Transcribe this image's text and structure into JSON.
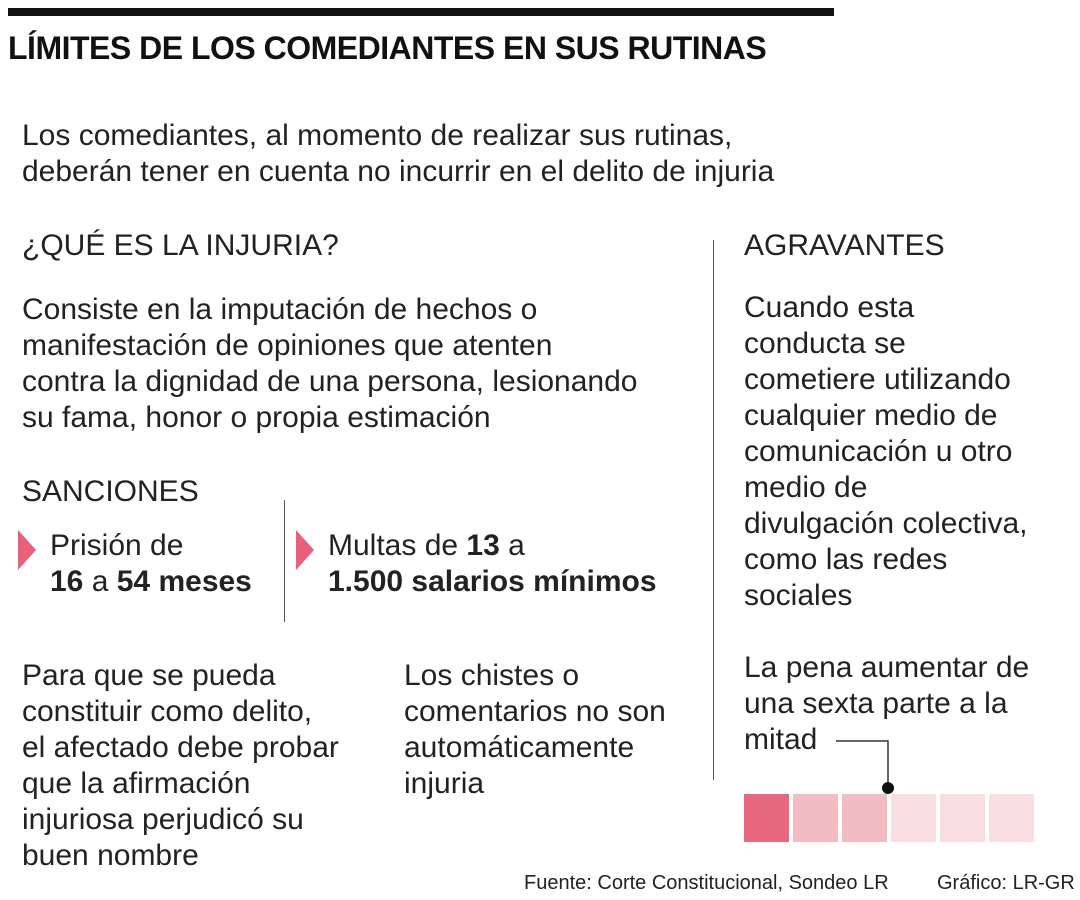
{
  "title": "LÍMITES DE LOS COMEDIANTES EN SUS RUTINAS",
  "intro": {
    "line1": "Los comediantes, al momento de realizar sus rutinas,",
    "line2": "deberán tener en cuenta no incurrir en el delito de injuria"
  },
  "what_is": {
    "heading": "¿QUÉ ES LA INJURIA?",
    "lines": [
      "Consiste en la imputación de hechos o",
      "manifestación de opiniones que atenten",
      "contra la dignidad de una persona, lesionando",
      "su fama, honor o propia estimación"
    ]
  },
  "sanctions": {
    "heading": "SANCIONES",
    "prison": {
      "prefix": "Prisión de",
      "from": "16",
      "connector": "a",
      "to": "54 meses"
    },
    "fines": {
      "prefix": "Multas de",
      "from": "13",
      "connector": "a",
      "to": "1.500 salarios mínimos"
    }
  },
  "proof": {
    "lines": [
      "Para que se pueda",
      "constituir como delito,",
      "el afectado debe probar",
      "que la afirmación",
      "injuriosa perjudicó su",
      "buen nombre"
    ]
  },
  "jokes": {
    "lines": [
      "Los chistes o",
      "comentarios no son",
      "automáticamente",
      "injuria"
    ]
  },
  "aggravating": {
    "heading": "AGRAVANTES",
    "lines": [
      "Cuando esta",
      "conducta se",
      "cometiere utilizando",
      "cualquier medio de",
      "comunicación u otro",
      "medio de",
      "divulgación colectiva,",
      "como las redes",
      "sociales"
    ],
    "penalty_lines": [
      "La pena aumentar de",
      "una sexta parte a la",
      "mitad"
    ],
    "scale": {
      "segments": 6,
      "filled_colors": [
        "#e8687e",
        "#f2bcc2",
        "#f2bcc2",
        "#f8dde1",
        "#f8dde1",
        "#f8dde1"
      ],
      "marker_after_segment": 3
    }
  },
  "footer": {
    "source": "Fuente: Corte Constitucional, Sondeo LR",
    "credit": "Gráfico: LR-GR"
  },
  "colors": {
    "accent": "#e8607a",
    "rule": "#111111"
  }
}
